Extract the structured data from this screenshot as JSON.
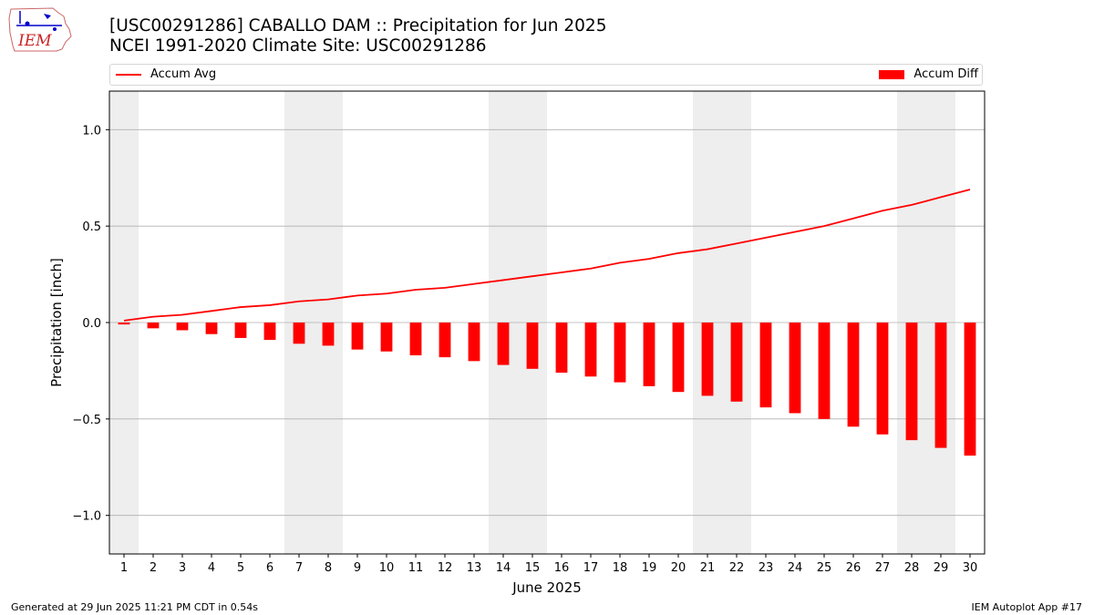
{
  "logo": {
    "text": "IEM"
  },
  "header": {
    "title": "[USC00291286] CABALLO DAM :: Precipitation for Jun 2025",
    "subtitle": "NCEI 1991-2020 Climate Site: USC00291286"
  },
  "legend": {
    "line_label": "Accum Avg",
    "bar_label": "Accum Diff"
  },
  "footer": {
    "left": "Generated at 29 Jun 2025 11:21 PM CDT in 0.54s",
    "right": "IEM Autoplot App #17"
  },
  "colors": {
    "series": "#ff0000",
    "weekend_shade": "#eeeeee",
    "grid": "#b0b0b0"
  },
  "chart_data": {
    "type": "bar",
    "title": "[USC00291286] CABALLO DAM :: Precipitation for Jun 2025",
    "subtitle": "NCEI 1991-2020 Climate Site: USC00291286",
    "xlabel": "June 2025",
    "ylabel": "Precipitation [inch]",
    "ylim": [
      -1.2,
      1.2
    ],
    "yticks": [
      -1.0,
      -0.5,
      0.0,
      0.5,
      1.0
    ],
    "ytick_labels": [
      "−1.0",
      "−0.5",
      "0.0",
      "0.5",
      "1.0"
    ],
    "grid": "y",
    "legend_placement": "top",
    "categories": [
      "1",
      "2",
      "3",
      "4",
      "5",
      "6",
      "7",
      "8",
      "9",
      "10",
      "11",
      "12",
      "13",
      "14",
      "15",
      "16",
      "17",
      "18",
      "19",
      "20",
      "21",
      "22",
      "23",
      "24",
      "25",
      "26",
      "27",
      "28",
      "29",
      "30"
    ],
    "shaded_days": [
      1,
      7,
      8,
      14,
      15,
      21,
      22,
      28,
      29
    ],
    "series": [
      {
        "name": "Accum Avg",
        "kind": "line",
        "values": [
          0.01,
          0.03,
          0.04,
          0.06,
          0.08,
          0.09,
          0.11,
          0.12,
          0.14,
          0.15,
          0.17,
          0.18,
          0.2,
          0.22,
          0.24,
          0.26,
          0.28,
          0.31,
          0.33,
          0.36,
          0.38,
          0.41,
          0.44,
          0.47,
          0.5,
          0.54,
          0.58,
          0.61,
          0.65,
          0.69
        ]
      },
      {
        "name": "Accum Diff",
        "kind": "bar",
        "values": [
          -0.01,
          -0.03,
          -0.04,
          -0.06,
          -0.08,
          -0.09,
          -0.11,
          -0.12,
          -0.14,
          -0.15,
          -0.17,
          -0.18,
          -0.2,
          -0.22,
          -0.24,
          -0.26,
          -0.28,
          -0.31,
          -0.33,
          -0.36,
          -0.38,
          -0.41,
          -0.44,
          -0.47,
          -0.5,
          -0.54,
          -0.58,
          -0.61,
          -0.65,
          -0.69
        ]
      }
    ]
  }
}
